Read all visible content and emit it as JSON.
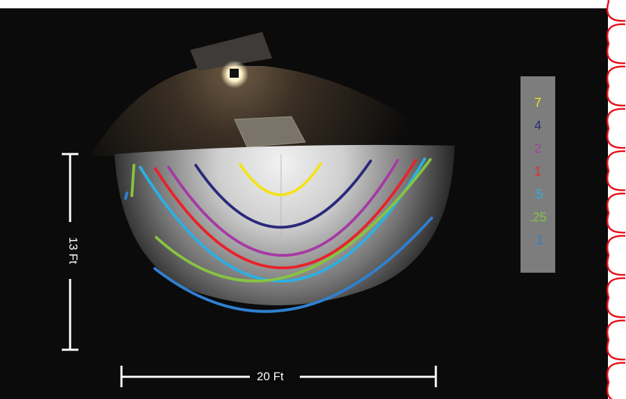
{
  "scene": {
    "background_color": "#0b0b0b",
    "wall_color": "#1a1410",
    "floor_color": "#0c0b0a",
    "illuminated_floor_color": "#e6e6e6",
    "light_fixture_icon": "wall-pack-light-icon",
    "border_color": "#e8101a"
  },
  "dimensions": {
    "height_label": "13 Ft",
    "width_label": "20 Ft",
    "line_color": "#ffffff"
  },
  "isolines": [
    {
      "label": "7",
      "color": "#f4e21a"
    },
    {
      "label": "4",
      "color": "#2a2a7a"
    },
    {
      "label": "2",
      "color": "#a63aa3"
    },
    {
      "label": "1",
      "color": "#e8232a"
    },
    {
      "label": ".5",
      "color": "#2ab0e4"
    },
    {
      "label": ".25",
      "color": "#86c440"
    },
    {
      "label": ".1",
      "color": "#2f7fcf"
    }
  ],
  "legend": {
    "background_color": "#7d7d7d"
  }
}
